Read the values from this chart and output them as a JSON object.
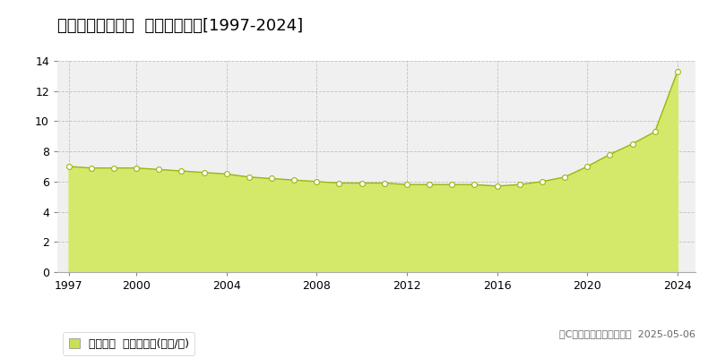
{
  "title": "富良野市北の峰町  基準地価推移[1997-2024]",
  "years": [
    1997,
    1998,
    1999,
    2000,
    2001,
    2002,
    2003,
    2004,
    2005,
    2006,
    2007,
    2008,
    2009,
    2010,
    2011,
    2012,
    2013,
    2014,
    2015,
    2016,
    2017,
    2018,
    2019,
    2020,
    2021,
    2022,
    2023,
    2024
  ],
  "values": [
    7.0,
    6.9,
    6.9,
    6.9,
    6.8,
    6.7,
    6.6,
    6.5,
    6.3,
    6.2,
    6.1,
    6.0,
    5.9,
    5.9,
    5.9,
    5.8,
    5.8,
    5.8,
    5.8,
    5.7,
    5.8,
    6.0,
    6.3,
    7.0,
    7.8,
    8.5,
    9.3,
    13.3
  ],
  "ylim": [
    0,
    14
  ],
  "yticks": [
    0,
    2,
    4,
    6,
    8,
    10,
    12,
    14
  ],
  "xticks": [
    1997,
    2000,
    2004,
    2008,
    2012,
    2016,
    2020,
    2024
  ],
  "fill_color": "#d4e96a",
  "line_color": "#9ab510",
  "marker_facecolor": "#ffffff",
  "marker_edgecolor": "#9ab510",
  "grid_color": "#bbbbbb",
  "bg_color": "#ffffff",
  "plot_bg_color": "#f0f0f0",
  "legend_label": "基準地価  平均坪単価(万円/坪)",
  "legend_square_color": "#c8e055",
  "copyright_text": "（C）土地価格ドットコム  2025-05-06",
  "title_fontsize": 13,
  "axis_fontsize": 9,
  "legend_fontsize": 9,
  "copyright_fontsize": 8
}
